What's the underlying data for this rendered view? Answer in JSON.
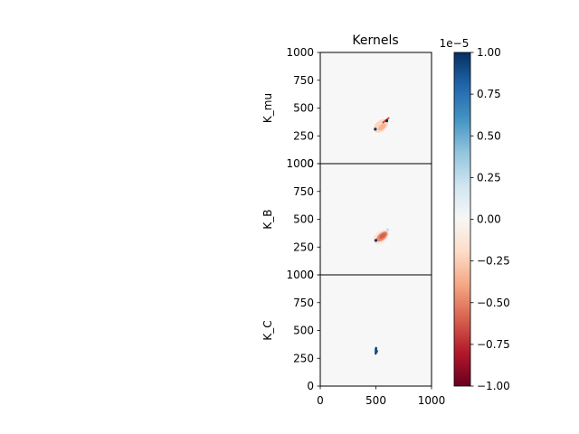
{
  "chart_data": {
    "type": "heatmap",
    "title": "Kernels",
    "xlim": [
      0,
      1000
    ],
    "ylim": [
      0,
      1000
    ],
    "x_ticks": [
      "0",
      "500",
      "1000"
    ],
    "y_ticks": [
      "0",
      "250",
      "500",
      "750",
      "1000"
    ],
    "panels": [
      {
        "ylabel": "K_mu",
        "features": [
          {
            "kind": "blob",
            "cx": 545,
            "cy": 340,
            "rx": 75,
            "ry": 48,
            "angle": -40,
            "value": -2.2e-06
          },
          {
            "kind": "blob",
            "cx": 555,
            "cy": 330,
            "rx": 40,
            "ry": 22,
            "angle": -40,
            "value": -3.5e-06
          },
          {
            "kind": "streak",
            "x1": 565,
            "y1": 370,
            "x2": 615,
            "y2": 410,
            "value": -6.5e-06
          },
          {
            "kind": "dot",
            "cx": 598,
            "cy": 385,
            "value": 1e-05
          },
          {
            "kind": "dot",
            "cx": 495,
            "cy": 310,
            "value": 1e-05
          }
        ]
      },
      {
        "ylabel": "K_B",
        "features": [
          {
            "kind": "blob",
            "cx": 545,
            "cy": 340,
            "rx": 80,
            "ry": 52,
            "angle": -40,
            "value": -1.2e-06
          },
          {
            "kind": "blob",
            "cx": 555,
            "cy": 345,
            "rx": 60,
            "ry": 32,
            "angle": -40,
            "value": -4.8e-06
          },
          {
            "kind": "blob",
            "cx": 560,
            "cy": 350,
            "rx": 35,
            "ry": 18,
            "angle": -40,
            "value": -6e-06
          },
          {
            "kind": "dot",
            "cx": 500,
            "cy": 310,
            "value": 1e-05
          },
          {
            "kind": "dot",
            "cx": 605,
            "cy": 405,
            "value": 2.5e-06
          }
        ]
      },
      {
        "ylabel": "K_C",
        "features": [
          {
            "kind": "blob",
            "cx": 500,
            "cy": 318,
            "rx": 14,
            "ry": 34,
            "angle": 0,
            "value": 5e-06
          },
          {
            "kind": "streak",
            "x1": 498,
            "y1": 290,
            "x2": 502,
            "y2": 345,
            "value": 1e-05
          },
          {
            "kind": "dot",
            "cx": 506,
            "cy": 312,
            "value": 9e-06
          }
        ]
      }
    ],
    "colorbar": {
      "colormap": "RdBu",
      "vmin": -1e-05,
      "vmax": 1e-05,
      "offset_label": "1e−5",
      "ticks": [
        {
          "value": -1.0,
          "label": "−1.00"
        },
        {
          "value": -0.75,
          "label": "−0.75"
        },
        {
          "value": -0.5,
          "label": "−0.50"
        },
        {
          "value": -0.25,
          "label": "−0.25"
        },
        {
          "value": 0.0,
          "label": "0.00"
        },
        {
          "value": 0.25,
          "label": "0.25"
        },
        {
          "value": 0.5,
          "label": "0.50"
        },
        {
          "value": 0.75,
          "label": "0.75"
        },
        {
          "value": 1.0,
          "label": "1.00"
        }
      ]
    }
  }
}
